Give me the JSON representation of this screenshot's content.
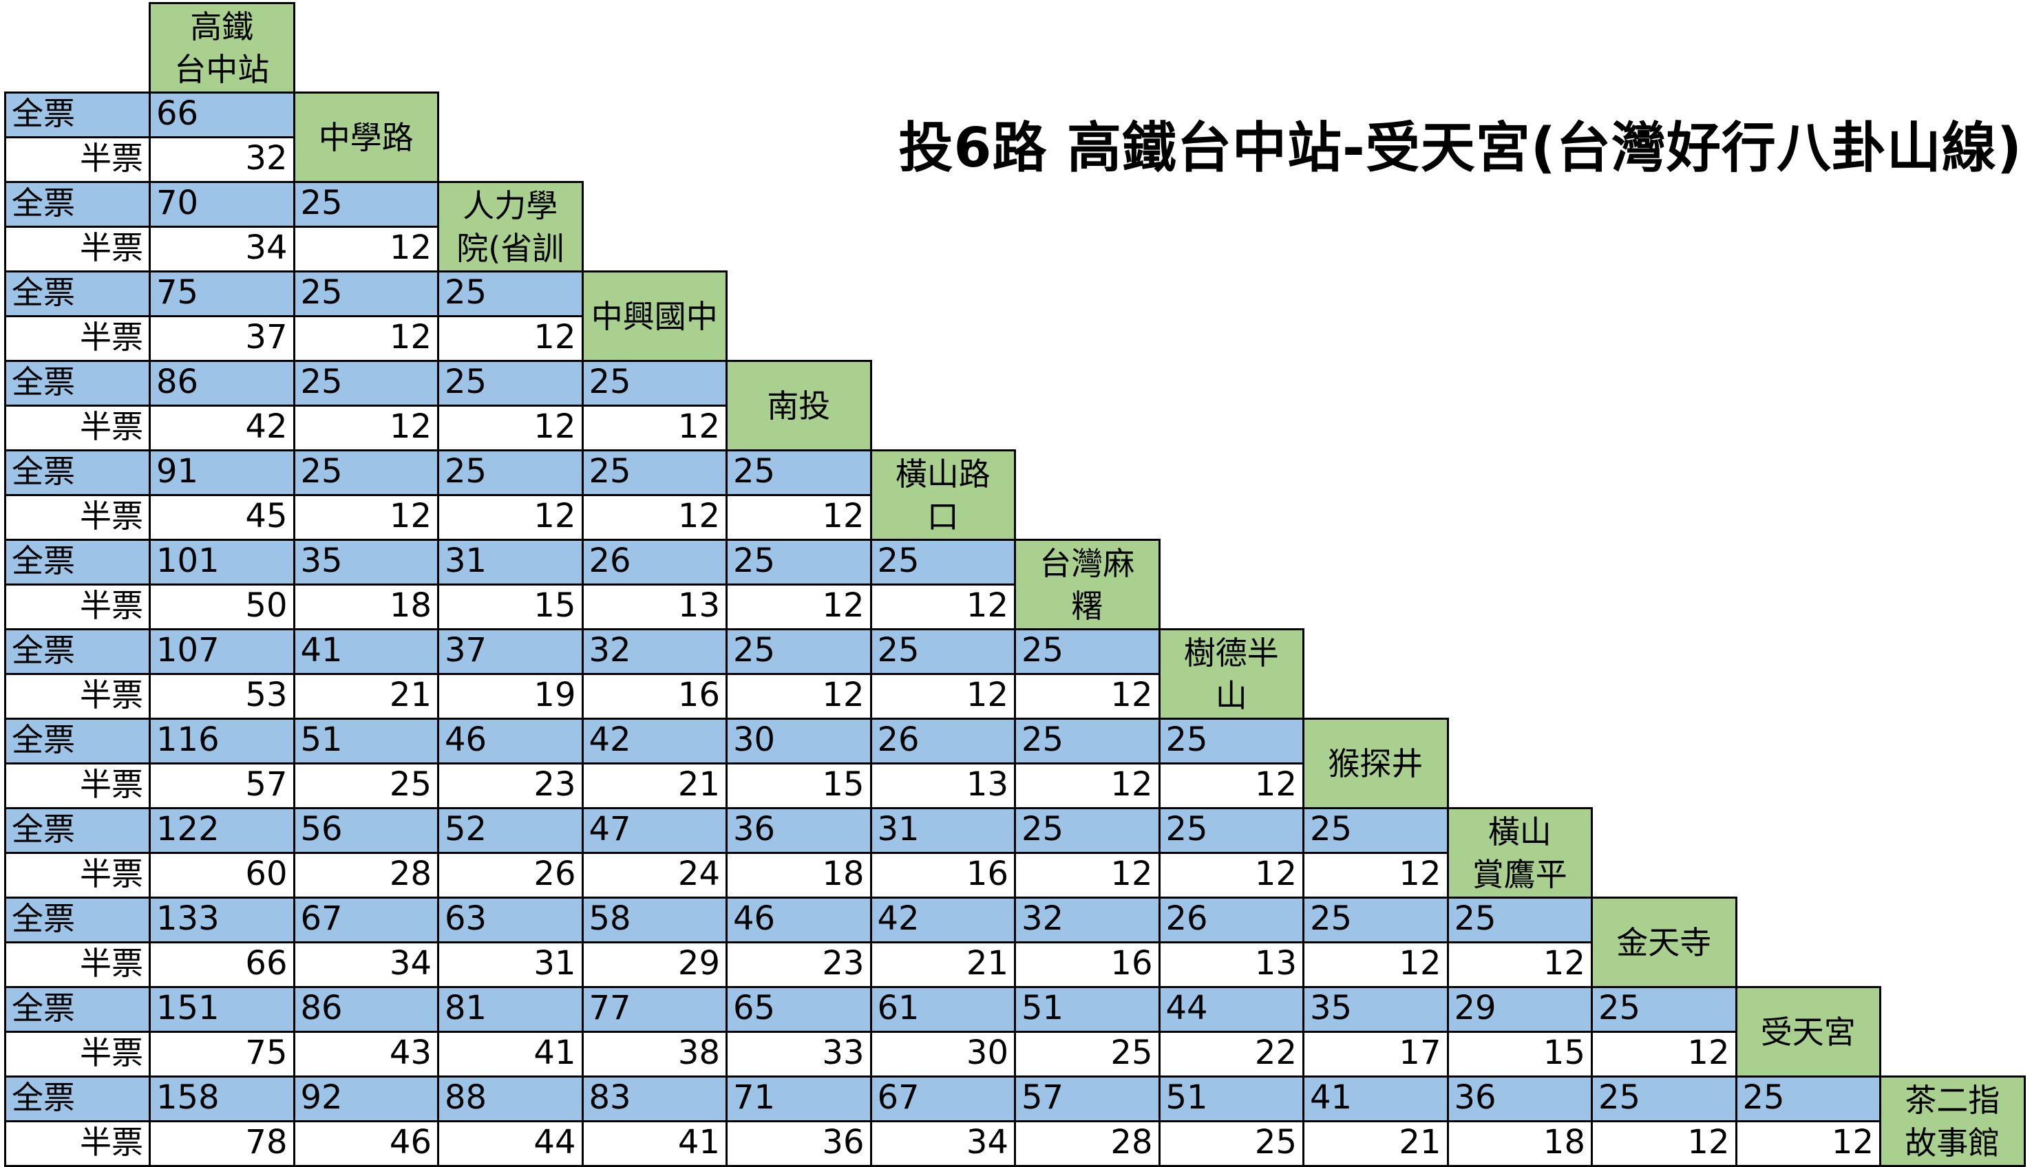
{
  "title": "投6路 高鐵台中站-受天宮(台灣好行八卦山線)",
  "labels": {
    "full": "全票",
    "half": "半票"
  },
  "stops": [
    "高鐵\n台中站",
    "中學路",
    "人力學\n院(省訓",
    "中興國中",
    "南投",
    "橫山路\n口",
    "台灣麻\n糬",
    "樹德半\n山",
    "猴探井",
    "橫山\n賞鷹平",
    "金天寺",
    "受天宮",
    "茶二指\n故事館"
  ],
  "fares": [
    {
      "full": [
        66
      ],
      "half": [
        32
      ]
    },
    {
      "full": [
        70,
        25
      ],
      "half": [
        34,
        12
      ]
    },
    {
      "full": [
        75,
        25,
        25
      ],
      "half": [
        37,
        12,
        12
      ]
    },
    {
      "full": [
        86,
        25,
        25,
        25
      ],
      "half": [
        42,
        12,
        12,
        12
      ]
    },
    {
      "full": [
        91,
        25,
        25,
        25,
        25
      ],
      "half": [
        45,
        12,
        12,
        12,
        12
      ]
    },
    {
      "full": [
        101,
        35,
        31,
        26,
        25,
        25
      ],
      "half": [
        50,
        18,
        15,
        13,
        12,
        12
      ]
    },
    {
      "full": [
        107,
        41,
        37,
        32,
        25,
        25,
        25
      ],
      "half": [
        53,
        21,
        19,
        16,
        12,
        12,
        12
      ]
    },
    {
      "full": [
        116,
        51,
        46,
        42,
        30,
        26,
        25,
        25
      ],
      "half": [
        57,
        25,
        23,
        21,
        15,
        13,
        12,
        12
      ]
    },
    {
      "full": [
        122,
        56,
        52,
        47,
        36,
        31,
        25,
        25,
        25
      ],
      "half": [
        60,
        28,
        26,
        24,
        18,
        16,
        12,
        12,
        12
      ]
    },
    {
      "full": [
        133,
        67,
        63,
        58,
        46,
        42,
        32,
        26,
        25,
        25
      ],
      "half": [
        66,
        34,
        31,
        29,
        23,
        21,
        16,
        13,
        12,
        12
      ]
    },
    {
      "full": [
        151,
        86,
        81,
        77,
        65,
        61,
        51,
        44,
        35,
        29,
        25
      ],
      "half": [
        75,
        43,
        41,
        38,
        33,
        30,
        25,
        22,
        17,
        15,
        12
      ]
    },
    {
      "full": [
        158,
        92,
        88,
        83,
        71,
        67,
        57,
        51,
        41,
        36,
        25,
        25
      ],
      "half": [
        78,
        46,
        44,
        41,
        36,
        34,
        28,
        25,
        21,
        18,
        12,
        12
      ]
    }
  ],
  "colors": {
    "full_row": "#9dc3e6",
    "stop_cell": "#a9d08e",
    "half_row": "#ffffff"
  }
}
